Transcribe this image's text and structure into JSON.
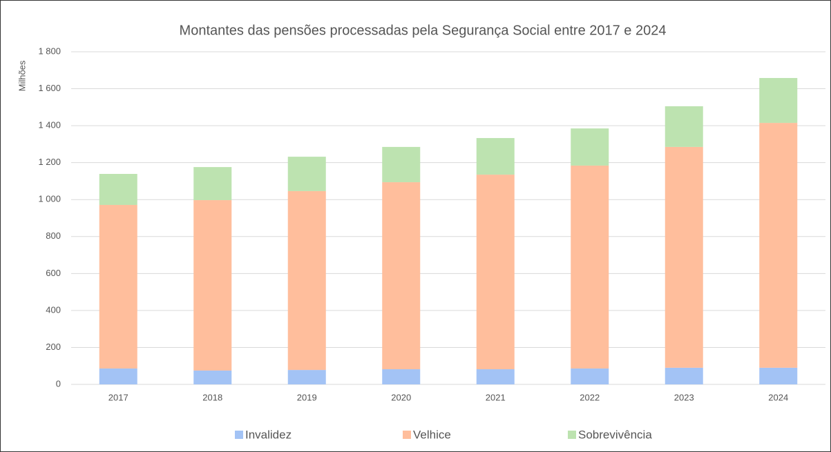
{
  "chart_data": {
    "type": "stacked_bar",
    "title": "Montantes das pensões processadas pela Segurança Social entre 2017 e 2024",
    "y_label": "Milhões",
    "categories": [
      "2017",
      "2018",
      "2019",
      "2020",
      "2021",
      "2022",
      "2023",
      "2024"
    ],
    "series": [
      {
        "name": "Invalidez",
        "color": "#a3c3f5",
        "values": [
          86,
          75,
          78,
          82,
          82,
          86,
          90,
          90
        ]
      },
      {
        "name": "Velhice",
        "color": "#ffbe9c",
        "values": [
          885,
          922,
          968,
          1012,
          1053,
          1098,
          1195,
          1325
        ]
      },
      {
        "name": "Sobrevivência",
        "color": "#bde3b0",
        "values": [
          168,
          179,
          186,
          191,
          198,
          201,
          220,
          243
        ]
      }
    ],
    "ylim": [
      0,
      1800
    ],
    "yticks": [
      0,
      200,
      400,
      600,
      800,
      {
        "value": 1000,
        "label": "1 000"
      },
      {
        "value": 1200,
        "label": "1 200"
      },
      {
        "value": 1400,
        "label": "1 400"
      },
      {
        "value": 1600,
        "label": "1 600"
      },
      {
        "value": 1800,
        "label": "1 800"
      }
    ],
    "grid": true,
    "legend": "bottom"
  }
}
